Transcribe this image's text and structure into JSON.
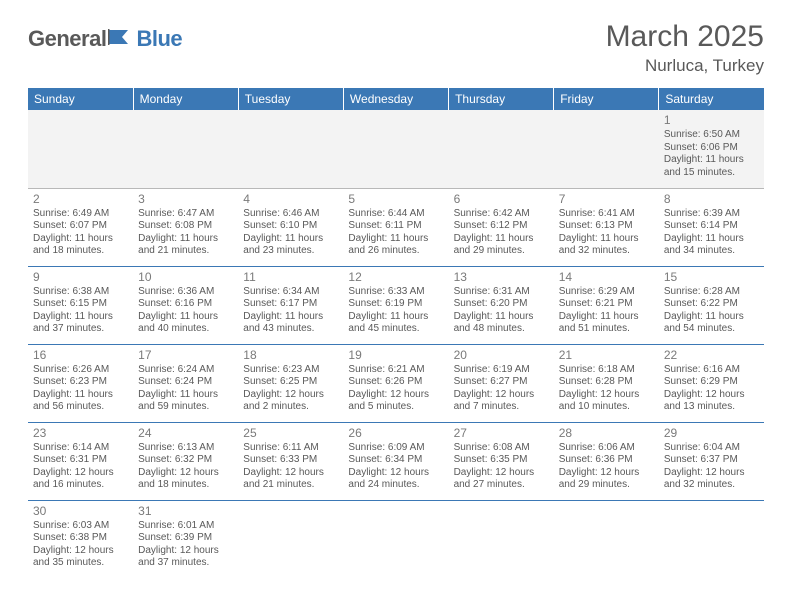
{
  "logo": {
    "general": "General",
    "blue": "Blue"
  },
  "title": "March 2025",
  "location": "Nurluca, Turkey",
  "colors": {
    "header_bg": "#3b78b5",
    "header_text": "#ffffff",
    "body_text": "#595959",
    "row_sep": "#3b78b5",
    "first_row_bg": "#f3f3f3"
  },
  "weekdays": [
    "Sunday",
    "Monday",
    "Tuesday",
    "Wednesday",
    "Thursday",
    "Friday",
    "Saturday"
  ],
  "weeks": [
    [
      null,
      null,
      null,
      null,
      null,
      null,
      {
        "n": "1",
        "sr": "Sunrise: 6:50 AM",
        "ss": "Sunset: 6:06 PM",
        "d1": "Daylight: 11 hours",
        "d2": "and 15 minutes."
      }
    ],
    [
      {
        "n": "2",
        "sr": "Sunrise: 6:49 AM",
        "ss": "Sunset: 6:07 PM",
        "d1": "Daylight: 11 hours",
        "d2": "and 18 minutes."
      },
      {
        "n": "3",
        "sr": "Sunrise: 6:47 AM",
        "ss": "Sunset: 6:08 PM",
        "d1": "Daylight: 11 hours",
        "d2": "and 21 minutes."
      },
      {
        "n": "4",
        "sr": "Sunrise: 6:46 AM",
        "ss": "Sunset: 6:10 PM",
        "d1": "Daylight: 11 hours",
        "d2": "and 23 minutes."
      },
      {
        "n": "5",
        "sr": "Sunrise: 6:44 AM",
        "ss": "Sunset: 6:11 PM",
        "d1": "Daylight: 11 hours",
        "d2": "and 26 minutes."
      },
      {
        "n": "6",
        "sr": "Sunrise: 6:42 AM",
        "ss": "Sunset: 6:12 PM",
        "d1": "Daylight: 11 hours",
        "d2": "and 29 minutes."
      },
      {
        "n": "7",
        "sr": "Sunrise: 6:41 AM",
        "ss": "Sunset: 6:13 PM",
        "d1": "Daylight: 11 hours",
        "d2": "and 32 minutes."
      },
      {
        "n": "8",
        "sr": "Sunrise: 6:39 AM",
        "ss": "Sunset: 6:14 PM",
        "d1": "Daylight: 11 hours",
        "d2": "and 34 minutes."
      }
    ],
    [
      {
        "n": "9",
        "sr": "Sunrise: 6:38 AM",
        "ss": "Sunset: 6:15 PM",
        "d1": "Daylight: 11 hours",
        "d2": "and 37 minutes."
      },
      {
        "n": "10",
        "sr": "Sunrise: 6:36 AM",
        "ss": "Sunset: 6:16 PM",
        "d1": "Daylight: 11 hours",
        "d2": "and 40 minutes."
      },
      {
        "n": "11",
        "sr": "Sunrise: 6:34 AM",
        "ss": "Sunset: 6:17 PM",
        "d1": "Daylight: 11 hours",
        "d2": "and 43 minutes."
      },
      {
        "n": "12",
        "sr": "Sunrise: 6:33 AM",
        "ss": "Sunset: 6:19 PM",
        "d1": "Daylight: 11 hours",
        "d2": "and 45 minutes."
      },
      {
        "n": "13",
        "sr": "Sunrise: 6:31 AM",
        "ss": "Sunset: 6:20 PM",
        "d1": "Daylight: 11 hours",
        "d2": "and 48 minutes."
      },
      {
        "n": "14",
        "sr": "Sunrise: 6:29 AM",
        "ss": "Sunset: 6:21 PM",
        "d1": "Daylight: 11 hours",
        "d2": "and 51 minutes."
      },
      {
        "n": "15",
        "sr": "Sunrise: 6:28 AM",
        "ss": "Sunset: 6:22 PM",
        "d1": "Daylight: 11 hours",
        "d2": "and 54 minutes."
      }
    ],
    [
      {
        "n": "16",
        "sr": "Sunrise: 6:26 AM",
        "ss": "Sunset: 6:23 PM",
        "d1": "Daylight: 11 hours",
        "d2": "and 56 minutes."
      },
      {
        "n": "17",
        "sr": "Sunrise: 6:24 AM",
        "ss": "Sunset: 6:24 PM",
        "d1": "Daylight: 11 hours",
        "d2": "and 59 minutes."
      },
      {
        "n": "18",
        "sr": "Sunrise: 6:23 AM",
        "ss": "Sunset: 6:25 PM",
        "d1": "Daylight: 12 hours",
        "d2": "and 2 minutes."
      },
      {
        "n": "19",
        "sr": "Sunrise: 6:21 AM",
        "ss": "Sunset: 6:26 PM",
        "d1": "Daylight: 12 hours",
        "d2": "and 5 minutes."
      },
      {
        "n": "20",
        "sr": "Sunrise: 6:19 AM",
        "ss": "Sunset: 6:27 PM",
        "d1": "Daylight: 12 hours",
        "d2": "and 7 minutes."
      },
      {
        "n": "21",
        "sr": "Sunrise: 6:18 AM",
        "ss": "Sunset: 6:28 PM",
        "d1": "Daylight: 12 hours",
        "d2": "and 10 minutes."
      },
      {
        "n": "22",
        "sr": "Sunrise: 6:16 AM",
        "ss": "Sunset: 6:29 PM",
        "d1": "Daylight: 12 hours",
        "d2": "and 13 minutes."
      }
    ],
    [
      {
        "n": "23",
        "sr": "Sunrise: 6:14 AM",
        "ss": "Sunset: 6:31 PM",
        "d1": "Daylight: 12 hours",
        "d2": "and 16 minutes."
      },
      {
        "n": "24",
        "sr": "Sunrise: 6:13 AM",
        "ss": "Sunset: 6:32 PM",
        "d1": "Daylight: 12 hours",
        "d2": "and 18 minutes."
      },
      {
        "n": "25",
        "sr": "Sunrise: 6:11 AM",
        "ss": "Sunset: 6:33 PM",
        "d1": "Daylight: 12 hours",
        "d2": "and 21 minutes."
      },
      {
        "n": "26",
        "sr": "Sunrise: 6:09 AM",
        "ss": "Sunset: 6:34 PM",
        "d1": "Daylight: 12 hours",
        "d2": "and 24 minutes."
      },
      {
        "n": "27",
        "sr": "Sunrise: 6:08 AM",
        "ss": "Sunset: 6:35 PM",
        "d1": "Daylight: 12 hours",
        "d2": "and 27 minutes."
      },
      {
        "n": "28",
        "sr": "Sunrise: 6:06 AM",
        "ss": "Sunset: 6:36 PM",
        "d1": "Daylight: 12 hours",
        "d2": "and 29 minutes."
      },
      {
        "n": "29",
        "sr": "Sunrise: 6:04 AM",
        "ss": "Sunset: 6:37 PM",
        "d1": "Daylight: 12 hours",
        "d2": "and 32 minutes."
      }
    ],
    [
      {
        "n": "30",
        "sr": "Sunrise: 6:03 AM",
        "ss": "Sunset: 6:38 PM",
        "d1": "Daylight: 12 hours",
        "d2": "and 35 minutes."
      },
      {
        "n": "31",
        "sr": "Sunrise: 6:01 AM",
        "ss": "Sunset: 6:39 PM",
        "d1": "Daylight: 12 hours",
        "d2": "and 37 minutes."
      },
      null,
      null,
      null,
      null,
      null
    ]
  ]
}
